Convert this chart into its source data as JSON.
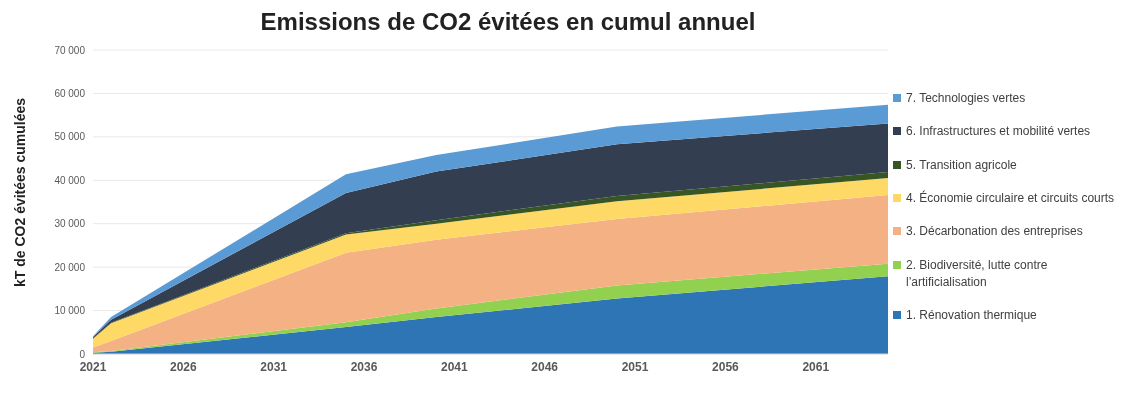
{
  "chart_data": {
    "type": "area",
    "stacked": true,
    "title": "Emissions de CO2 évitées en cumul annuel",
    "ylabel": "kT de CO2 évitées  cumulées",
    "x": [
      2021,
      2022,
      2035,
      2040,
      2050,
      2065
    ],
    "xlim": [
      2021,
      2065
    ],
    "xticks": [
      2021,
      2026,
      2031,
      2036,
      2041,
      2046,
      2051,
      2056,
      2061
    ],
    "ylim": [
      0,
      70000
    ],
    "yticks": [
      {
        "value": 0,
        "label": "0"
      },
      {
        "value": 10000,
        "label": "10 000"
      },
      {
        "value": 20000,
        "label": "20 000"
      },
      {
        "value": 30000,
        "label": "30 000"
      },
      {
        "value": 40000,
        "label": "40 000"
      },
      {
        "value": 50000,
        "label": "50 000"
      },
      {
        "value": 60000,
        "label": "60 000"
      },
      {
        "value": 70000,
        "label": "70 000"
      }
    ],
    "grid": "y",
    "legend": "right",
    "series": [
      {
        "name": "1. Rénovation thermique",
        "color": "#2e75b6",
        "values": [
          300,
          500,
          6200,
          8500,
          12800,
          17900
        ]
      },
      {
        "name": "2. Biodiversité, lutte contre l’artificialisation",
        "color": "#92d050",
        "values": [
          100,
          200,
          1100,
          2000,
          3000,
          2900
        ]
      },
      {
        "name": "3. Décarbonation des entreprises",
        "color": "#f4b183",
        "values": [
          1100,
          2300,
          16000,
          15800,
          15300,
          15800
        ]
      },
      {
        "name": "4. Économie circulaire et circuits courts",
        "color": "#ffd966",
        "values": [
          2000,
          4100,
          4200,
          3700,
          4100,
          3900
        ]
      },
      {
        "name": "5. Transition agricole",
        "color": "#375623",
        "values": [
          100,
          100,
          300,
          800,
          1200,
          1400
        ]
      },
      {
        "name": "6. Infrastructures et mobilité vertes",
        "color": "#333f50",
        "values": [
          300,
          700,
          9300,
          11200,
          11900,
          11200
        ]
      },
      {
        "name": "7. Technologies vertes",
        "color": "#5b9bd5",
        "values": [
          200,
          600,
          4300,
          3800,
          4100,
          4300
        ]
      }
    ]
  }
}
